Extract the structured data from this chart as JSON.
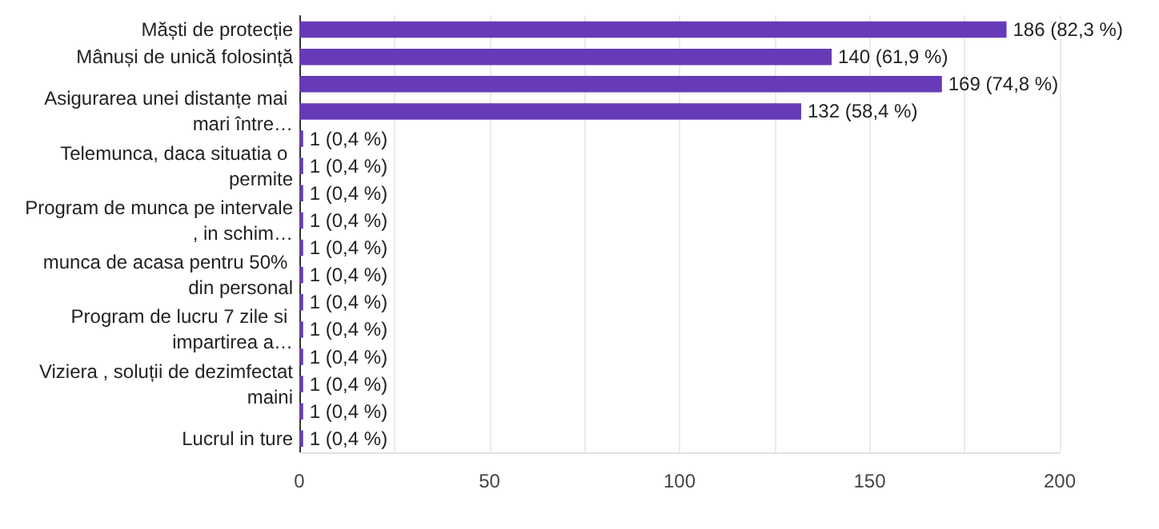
{
  "chart_data": {
    "type": "bar",
    "orientation": "horizontal",
    "categories": [
      "Măști de protecție",
      "Mânuși de unică folosință",
      null,
      "Asigurarea unei distanțe mai mari între…",
      null,
      "Telemunca, daca situatia o permite",
      null,
      "Program de munca pe intervale, in schim…",
      null,
      "munca de acasa pentru 50% din personal",
      null,
      "Program de lucru 7 zile si impartirea a…",
      null,
      "Viziera , soluții de dezimfectat maini",
      null,
      "Lucrul in ture"
    ],
    "values": [
      186,
      140,
      169,
      132,
      1,
      1,
      1,
      1,
      1,
      1,
      1,
      1,
      1,
      1,
      1,
      1
    ],
    "value_labels": [
      "186 (82,3 %)",
      "140 (61,9 %)",
      "169 (74,8 %)",
      "132 (58,4 %)",
      "1 (0,4 %)",
      "1 (0,4 %)",
      "1 (0,4 %)",
      "1 (0,4 %)",
      "1 (0,4 %)",
      "1 (0,4 %)",
      "1 (0,4 %)",
      "1 (0,4 %)",
      "1 (0,4 %)",
      "1 (0,4 %)",
      "1 (0,4 %)",
      "1 (0,4 %)"
    ],
    "color": "#673ab7",
    "xlim": [
      0,
      200
    ],
    "xticks": [
      0,
      {
        "value": 25,
        "label": null
      },
      50,
      {
        "value": 75,
        "label": null
      },
      100,
      {
        "value": 125,
        "label": null
      },
      150,
      {
        "value": 175,
        "label": null
      },
      200
    ],
    "grid": "x"
  }
}
